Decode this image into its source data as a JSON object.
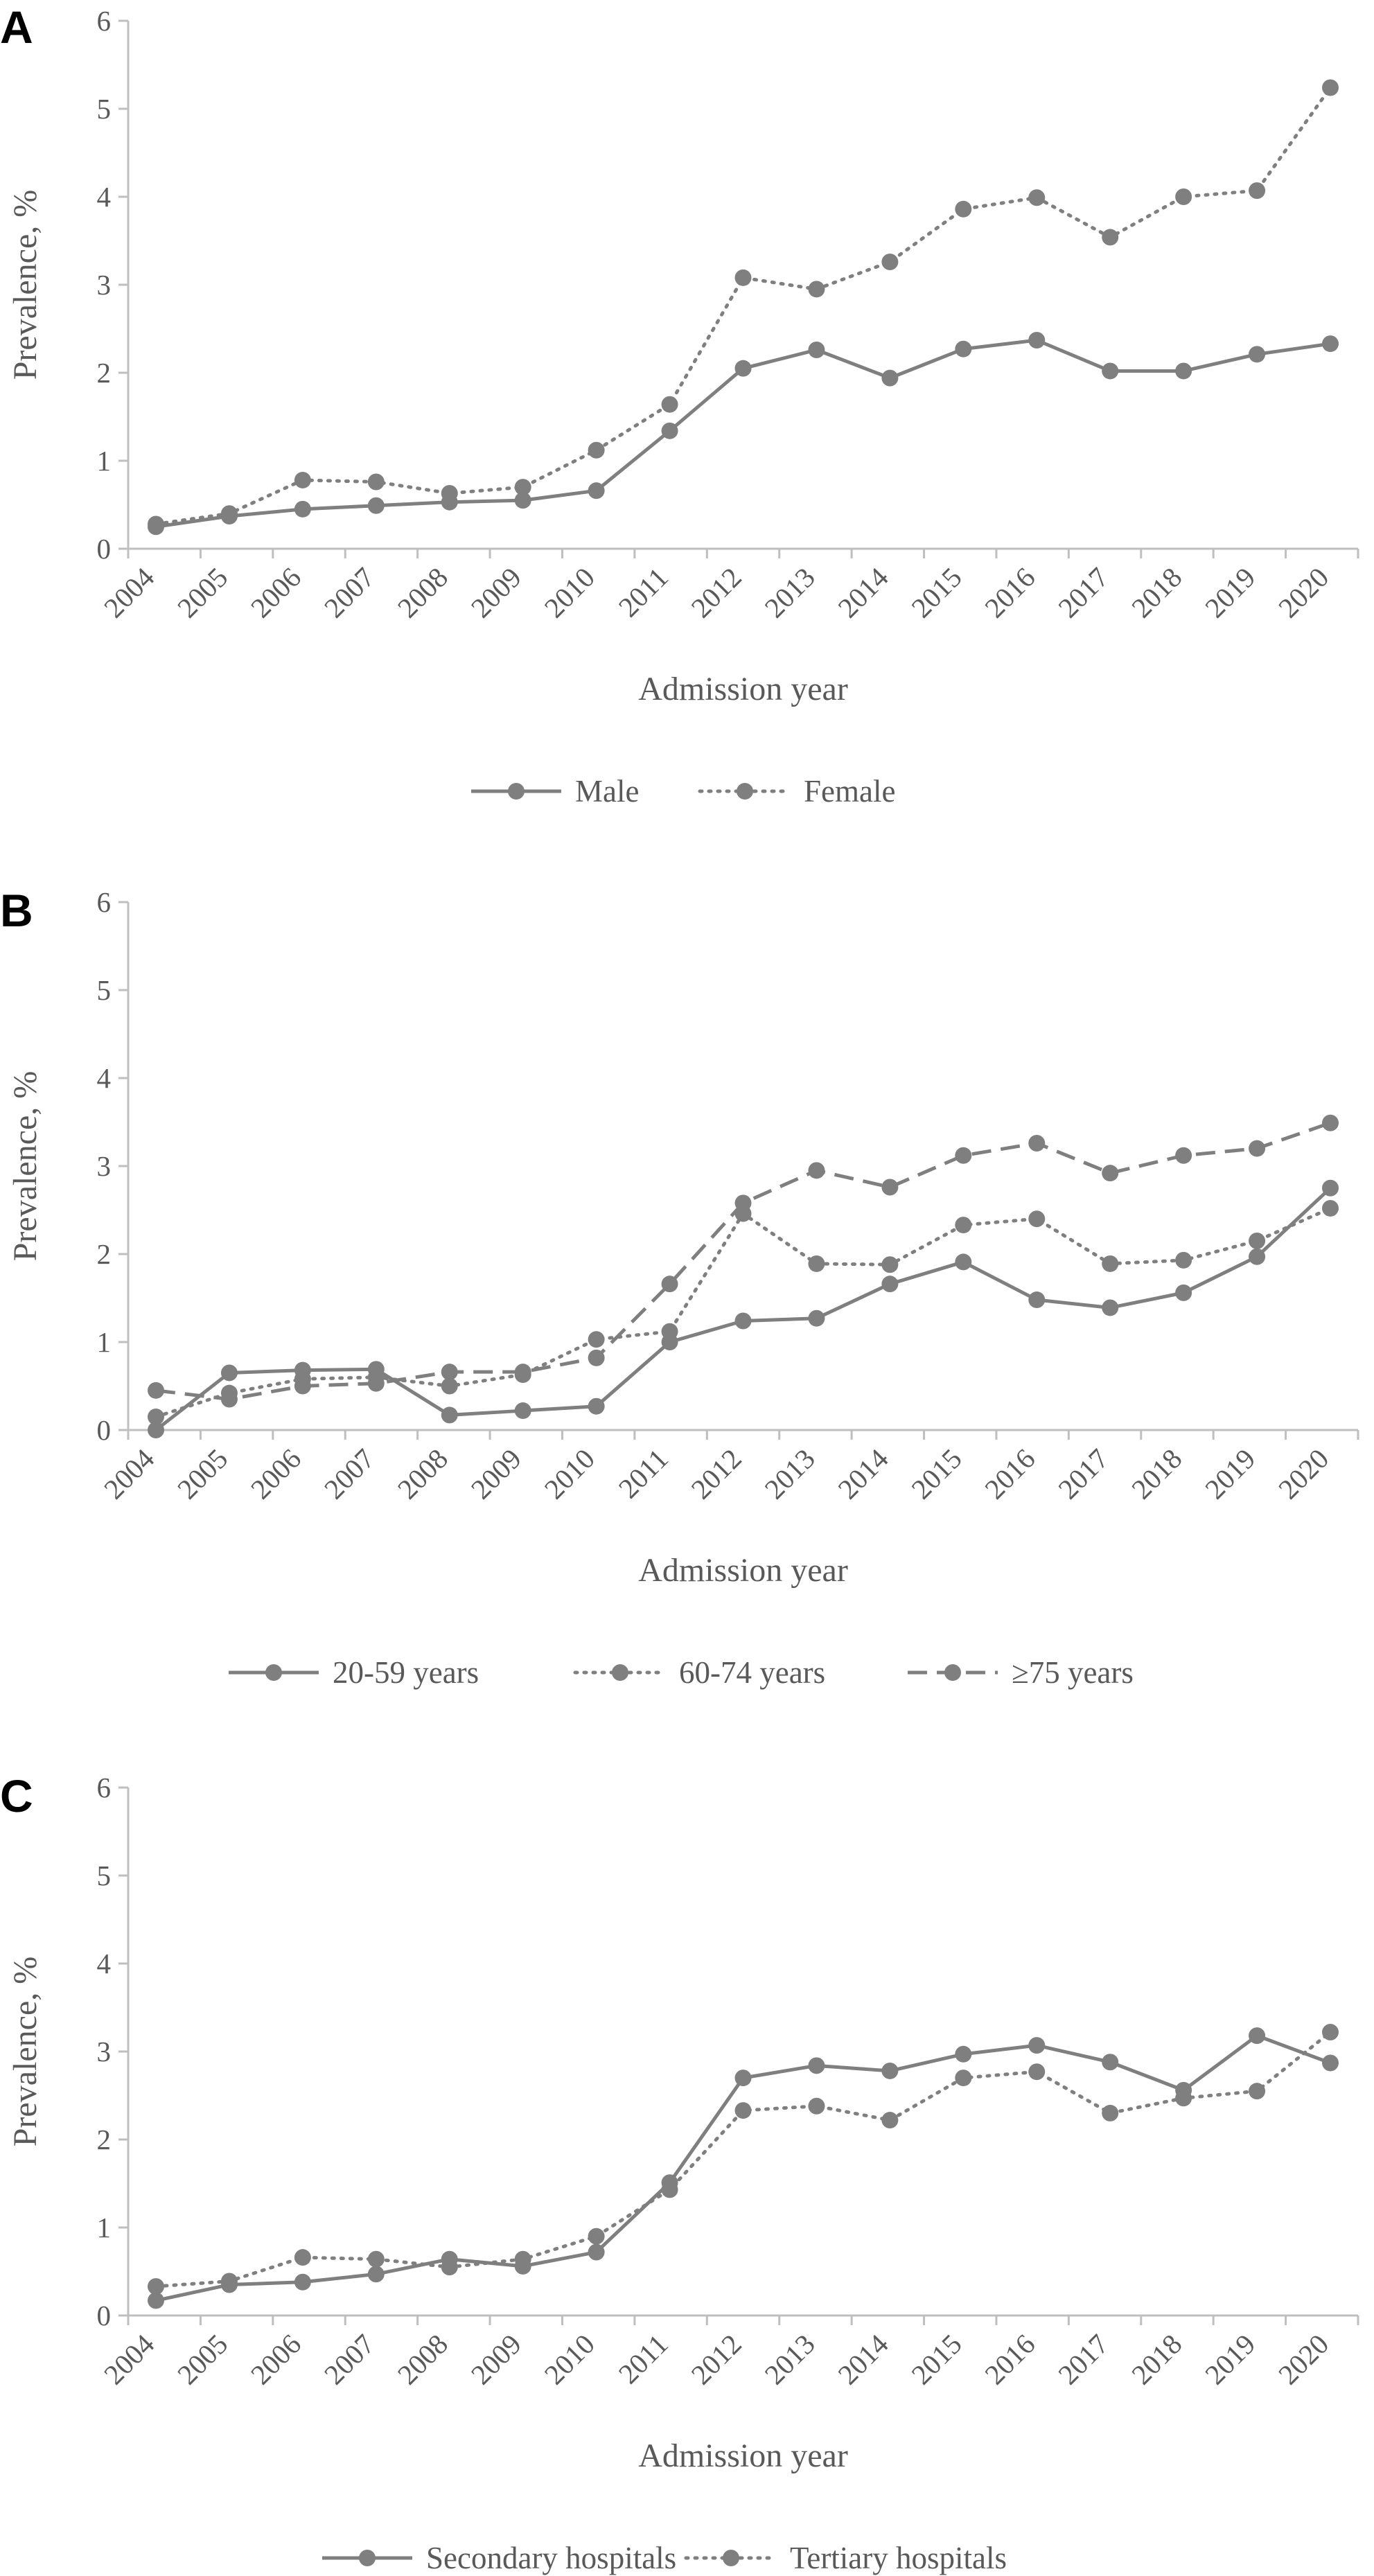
{
  "figure": {
    "panel_letters": [
      "A",
      "B",
      "C"
    ]
  },
  "colors": {
    "series": "#7f7f7f",
    "axis": "#bfbfbf",
    "text": "#595959",
    "letter": "#000000"
  },
  "chart_data": [
    {
      "panel": "A",
      "type": "line",
      "xlabel": "Admission year",
      "ylabel": "Prevalence, %",
      "ylim": [
        0,
        6
      ],
      "yticks": [
        "0",
        "1",
        "2",
        "3",
        "4",
        "5",
        "6"
      ],
      "categories": [
        "2004",
        "2005",
        "2006",
        "2007",
        "2008",
        "2009",
        "2010",
        "2011",
        "2012",
        "2013",
        "2014",
        "2015",
        "2016",
        "2017",
        "2018",
        "2019",
        "2020"
      ],
      "grid": false,
      "legend_position": "bottom-center",
      "series": [
        {
          "name": "Male",
          "style": "solid",
          "values": [
            0.25,
            0.37,
            0.45,
            0.49,
            0.53,
            0.55,
            0.66,
            1.34,
            2.05,
            2.26,
            1.94,
            2.27,
            2.37,
            2.02,
            2.02,
            2.21,
            2.33
          ]
        },
        {
          "name": "Female",
          "style": "dotted",
          "values": [
            0.28,
            0.4,
            0.78,
            0.76,
            0.63,
            0.7,
            1.12,
            1.64,
            3.08,
            2.95,
            3.26,
            3.86,
            3.99,
            3.54,
            4.0,
            4.07,
            5.24
          ]
        }
      ]
    },
    {
      "panel": "B",
      "type": "line",
      "xlabel": "Admission year",
      "ylabel": "Prevalence, %",
      "ylim": [
        0,
        6
      ],
      "yticks": [
        "0",
        "1",
        "2",
        "3",
        "4",
        "5",
        "6"
      ],
      "categories": [
        "2004",
        "2005",
        "2006",
        "2007",
        "2008",
        "2009",
        "2010",
        "2011",
        "2012",
        "2013",
        "2014",
        "2015",
        "2016",
        "2017",
        "2018",
        "2019",
        "2020"
      ],
      "grid": false,
      "legend_position": "bottom-center",
      "series": [
        {
          "name": "20-59 years",
          "style": "solid",
          "values": [
            0.0,
            0.65,
            0.68,
            0.69,
            0.17,
            0.22,
            0.27,
            1.0,
            1.24,
            1.27,
            1.66,
            1.91,
            1.48,
            1.39,
            1.56,
            1.97,
            2.75
          ]
        },
        {
          "name": "60-74 years",
          "style": "dotted",
          "values": [
            0.15,
            0.42,
            0.58,
            0.6,
            0.5,
            0.63,
            1.03,
            1.12,
            2.46,
            1.89,
            1.88,
            2.33,
            2.4,
            1.89,
            1.93,
            2.15,
            2.52
          ]
        },
        {
          "name": "≥75 years",
          "style": "dashed",
          "values": [
            0.45,
            0.35,
            0.5,
            0.53,
            0.66,
            0.66,
            0.82,
            1.66,
            2.58,
            2.95,
            2.76,
            3.12,
            3.26,
            2.92,
            3.12,
            3.2,
            3.49
          ]
        }
      ]
    },
    {
      "panel": "C",
      "type": "line",
      "xlabel": "Admission year",
      "ylabel": "Prevalence, %",
      "ylim": [
        0,
        6
      ],
      "yticks": [
        "0",
        "1",
        "2",
        "3",
        "4",
        "5",
        "6"
      ],
      "categories": [
        "2004",
        "2005",
        "2006",
        "2007",
        "2008",
        "2009",
        "2010",
        "2011",
        "2012",
        "2013",
        "2014",
        "2015",
        "2016",
        "2017",
        "2018",
        "2019",
        "2020"
      ],
      "grid": false,
      "legend_position": "bottom-center",
      "series": [
        {
          "name": "Secondary hospitals",
          "style": "solid",
          "values": [
            0.17,
            0.35,
            0.38,
            0.47,
            0.64,
            0.56,
            0.72,
            1.51,
            2.7,
            2.84,
            2.78,
            2.97,
            3.07,
            2.88,
            2.56,
            3.18,
            2.87
          ]
        },
        {
          "name": "Tertiary hospitals",
          "style": "dotted",
          "values": [
            0.33,
            0.39,
            0.66,
            0.64,
            0.55,
            0.64,
            0.9,
            1.43,
            2.33,
            2.38,
            2.22,
            2.7,
            2.77,
            2.3,
            2.47,
            2.55,
            3.22
          ]
        }
      ]
    }
  ]
}
